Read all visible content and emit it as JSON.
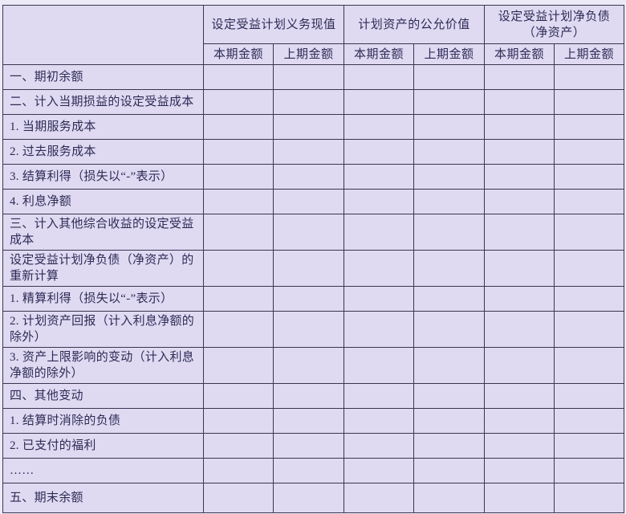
{
  "colors": {
    "page_background": "#edeaf7",
    "cell_background": "#dfdaf2",
    "grid_border": "#3a3650",
    "text": "#2e2b55"
  },
  "table": {
    "column_groups": [
      {
        "title": "设定受益计划义务现值"
      },
      {
        "title": "计划资产的公允价值"
      },
      {
        "title": "设定受益计划净负债\n（净资产）"
      }
    ],
    "subheaders": [
      "本期金额",
      "上期金额",
      "本期金额",
      "上期金额",
      "本期金额",
      "上期金额"
    ],
    "rows": [
      {
        "label": "一、期初余额",
        "values": [
          "",
          "",
          "",
          "",
          "",
          ""
        ]
      },
      {
        "label": "二、计入当期损益的设定受益成本",
        "values": [
          "",
          "",
          "",
          "",
          "",
          ""
        ]
      },
      {
        "label": "1. 当期服务成本",
        "values": [
          "",
          "",
          "",
          "",
          "",
          ""
        ]
      },
      {
        "label": "2. 过去服务成本",
        "values": [
          "",
          "",
          "",
          "",
          "",
          ""
        ]
      },
      {
        "label": "3. 结算利得（损失以“-”表示）",
        "values": [
          "",
          "",
          "",
          "",
          "",
          ""
        ]
      },
      {
        "label": "4. 利息净额",
        "values": [
          "",
          "",
          "",
          "",
          "",
          ""
        ]
      },
      {
        "label": "三、计入其他综合收益的设定受益成本",
        "values": [
          "",
          "",
          "",
          "",
          "",
          ""
        ]
      },
      {
        "label": "设定受益计划净负债（净资产）的重新计算",
        "values": [
          "",
          "",
          "",
          "",
          "",
          ""
        ]
      },
      {
        "label": "1. 精算利得（损失以“-”表示）",
        "values": [
          "",
          "",
          "",
          "",
          "",
          ""
        ]
      },
      {
        "label": "2. 计划资产回报（计入利息净额的除外）",
        "values": [
          "",
          "",
          "",
          "",
          "",
          ""
        ]
      },
      {
        "label": "3. 资产上限影响的变动（计入利息净额的除外）",
        "values": [
          "",
          "",
          "",
          "",
          "",
          ""
        ]
      },
      {
        "label": "四、其他变动",
        "values": [
          "",
          "",
          "",
          "",
          "",
          ""
        ]
      },
      {
        "label": "1. 结算时消除的负债",
        "values": [
          "",
          "",
          "",
          "",
          "",
          ""
        ]
      },
      {
        "label": "2. 已支付的福利",
        "values": [
          "",
          "",
          "",
          "",
          "",
          ""
        ]
      },
      {
        "label": "……",
        "values": [
          "",
          "",
          "",
          "",
          "",
          ""
        ]
      },
      {
        "label": "五、期末余额",
        "values": [
          "",
          "",
          "",
          "",
          "",
          ""
        ]
      }
    ]
  }
}
